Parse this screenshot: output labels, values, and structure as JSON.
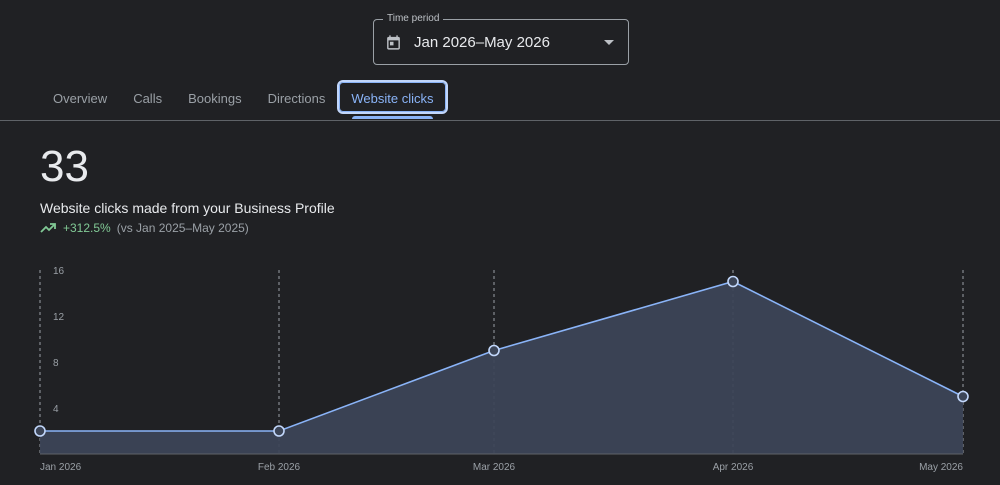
{
  "time_period": {
    "legend": "Time period",
    "value": "Jan 2026–May 2026",
    "icon": "calendar-icon"
  },
  "tabs": [
    {
      "label": "Overview",
      "active": false
    },
    {
      "label": "Calls",
      "active": false
    },
    {
      "label": "Bookings",
      "active": false
    },
    {
      "label": "Directions",
      "active": false
    },
    {
      "label": "Website clicks",
      "active": true
    }
  ],
  "metric": {
    "value": "33",
    "label": "Website clicks made from your Business Profile",
    "change": "+312.5%",
    "comparison": "(vs Jan 2025–May 2025)",
    "trend_icon": "trending-up-icon"
  },
  "colors": {
    "background": "#202124",
    "accent": "#8ab4f8",
    "positive": "#81c995",
    "area_fill": "#3c4557"
  },
  "chart_data": {
    "type": "area",
    "categories": [
      "Jan 2026",
      "Feb 2026",
      "Mar 2026",
      "Apr 2026",
      "May 2026"
    ],
    "values": [
      2,
      2,
      9,
      15,
      5
    ],
    "y_ticks": [
      "16",
      "12",
      "8",
      "4"
    ],
    "ylim": [
      0,
      16
    ],
    "grid": "vertical dashed",
    "markers": true
  }
}
